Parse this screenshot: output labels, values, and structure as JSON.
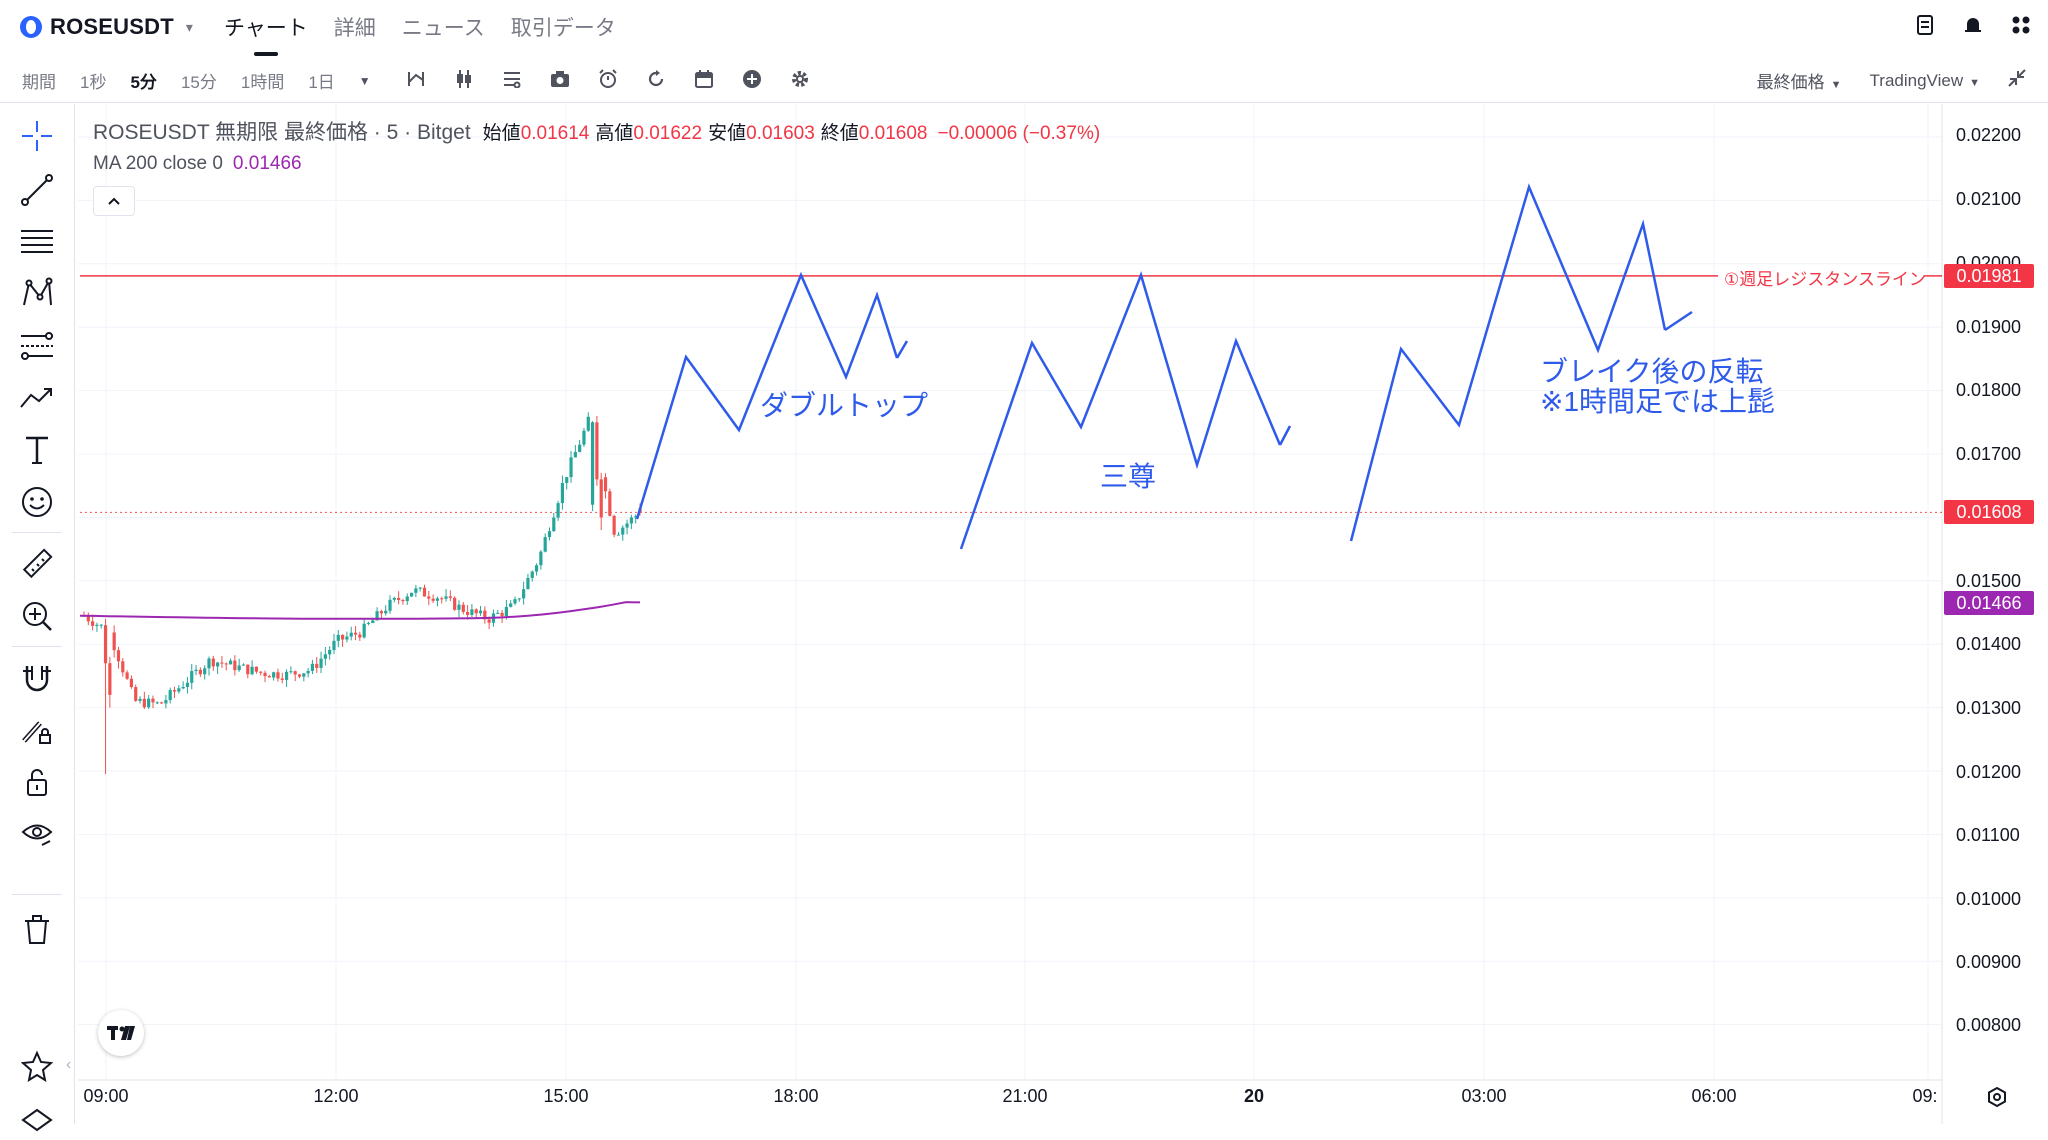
{
  "header": {
    "symbol": "ROSEUSDT",
    "tabs": [
      {
        "label": "チャート",
        "active": true
      },
      {
        "label": "詳細",
        "active": false
      },
      {
        "label": "ニュース",
        "active": false
      },
      {
        "label": "取引データ",
        "active": false
      }
    ],
    "right_icons": [
      "notes-icon",
      "alert-icon",
      "grid-icon"
    ]
  },
  "toolbar": {
    "period_label": "期間",
    "timeframes": [
      {
        "label": "1秒",
        "active": false
      },
      {
        "label": "5分",
        "active": true
      },
      {
        "label": "15分",
        "active": false
      },
      {
        "label": "1時間",
        "active": false
      },
      {
        "label": "1日",
        "active": false
      }
    ],
    "price_type": "最終価格",
    "provider": "TradingView"
  },
  "legend": {
    "name": "ROSEUSDT 無期限 最終価格 · 5 · Bitget",
    "open_label": "始値",
    "open": "0.01614",
    "high_label": "高値",
    "high": "0.01622",
    "low_label": "安値",
    "low": "0.01603",
    "close_label": "終値",
    "close": "0.01608",
    "change": "−0.00006 (−0.37%)",
    "ma_label": "MA 200 close 0",
    "ma_value": "0.01466"
  },
  "colors": {
    "up": "#26a69a",
    "down": "#ef5350",
    "ma": "#9c27b0",
    "resistance": "#f23645",
    "drawing": "#2f5bea"
  },
  "price_axis": {
    "ticks": [
      "0.02200",
      "0.02100",
      "0.02000",
      "0.01900",
      "0.01800",
      "0.01700",
      "0.01500",
      "0.01400",
      "0.01300",
      "0.01200",
      "0.01100",
      "0.01000",
      "0.00900",
      "0.00800"
    ],
    "current_price": "0.01608",
    "resistance_price": "0.01981",
    "ma_price": "0.01466"
  },
  "time_axis": {
    "ticks": [
      "09:00",
      "12:00",
      "15:00",
      "18:00",
      "21:00",
      "20",
      "03:00",
      "06:00",
      "09:"
    ]
  },
  "annotations": {
    "resistance_label": "①週足レジスタンスライン",
    "double_top": "ダブルトップ",
    "triple": "三尊",
    "break_line1": "ブレイク後の反転",
    "break_line2": "※1時間足では上髭"
  },
  "chart_data": {
    "type": "candlestick",
    "y_range": [
      0.0078,
      0.0223
    ],
    "series": [
      {
        "name": "ROSEUSDT",
        "close_approx": [
          0.01445,
          0.0142,
          0.0131,
          0.01305,
          0.0134,
          0.01375,
          0.01365,
          0.01355,
          0.01352,
          0.0136,
          0.01405,
          0.0142,
          0.0146,
          0.01485,
          0.01475,
          0.01455,
          0.0144,
          0.0146,
          0.01535,
          0.0166,
          0.01755,
          0.01575,
          0.01608
        ]
      },
      {
        "name": "MA 200 close 0",
        "last": 0.01466
      }
    ],
    "resistance": 0.01981
  }
}
